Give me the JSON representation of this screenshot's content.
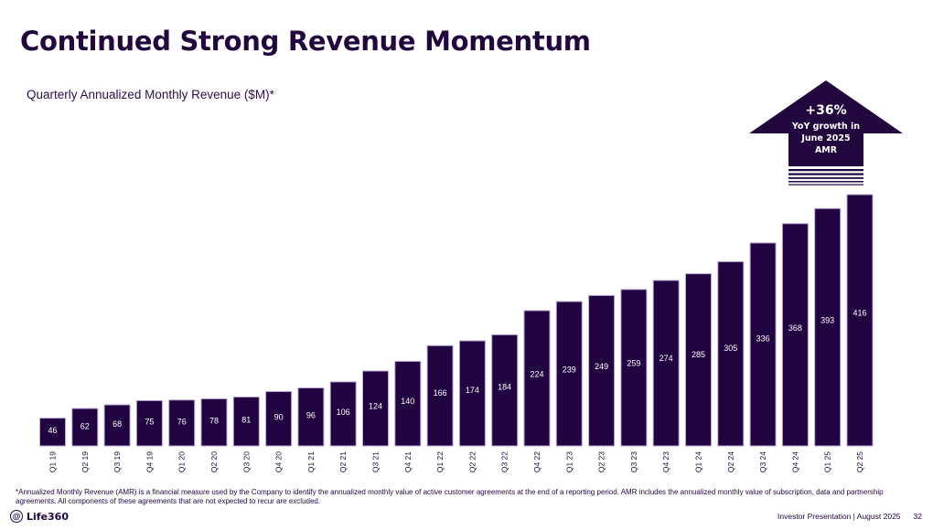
{
  "slide": {
    "title": "Continued Strong Revenue Momentum",
    "subtitle": "Quarterly Annualized Monthly Revenue ($M)*",
    "footnote": "*Annualized Monthly Revenue (AMR) is a financial measure used by the Company to identify the annualized monthly value of active customer agreements at the end of a reporting period. AMR includes the annualized monthly value of subscription, data and partnership agreements. All components of these agreements that are not expected to recur are excluded.",
    "logo_text": "Life360",
    "footer_label": "Investor Presentation  | August 2025",
    "page_number": "32"
  },
  "callout": {
    "headline": "+36%",
    "line1": "YoY growth in",
    "line2": "June 2025",
    "line3": "AMR"
  },
  "colors": {
    "primary": "#22073f",
    "bar_fill": "#210342",
    "bar_edge": "#b8a6d1"
  },
  "chart_data": {
    "type": "bar",
    "title": "Quarterly Annualized Monthly Revenue ($M)*",
    "xlabel": "",
    "ylabel": "",
    "ylim": [
      0,
      416
    ],
    "grid": false,
    "legend": "none",
    "categories": [
      "Q1 19",
      "Q2 19",
      "Q3 19",
      "Q4 19",
      "Q1 20",
      "Q2 20",
      "Q3 20",
      "Q4 20",
      "Q1 21",
      "Q2 21",
      "Q3 21",
      "Q4 21",
      "Q1 22",
      "Q2 22",
      "Q3 22",
      "Q4 22",
      "Q1 23",
      "Q2 23",
      "Q3 23",
      "Q4 23",
      "Q1 24",
      "Q2 24",
      "Q3 24",
      "Q4 24",
      "Q1 25",
      "Q2 25"
    ],
    "values": [
      46,
      62,
      68,
      75,
      76,
      78,
      81,
      90,
      96,
      106,
      124,
      140,
      166,
      174,
      184,
      224,
      239,
      249,
      259,
      274,
      285,
      305,
      336,
      368,
      393,
      416
    ],
    "annotations": [
      "+36% YoY growth in June 2025 AMR"
    ]
  }
}
